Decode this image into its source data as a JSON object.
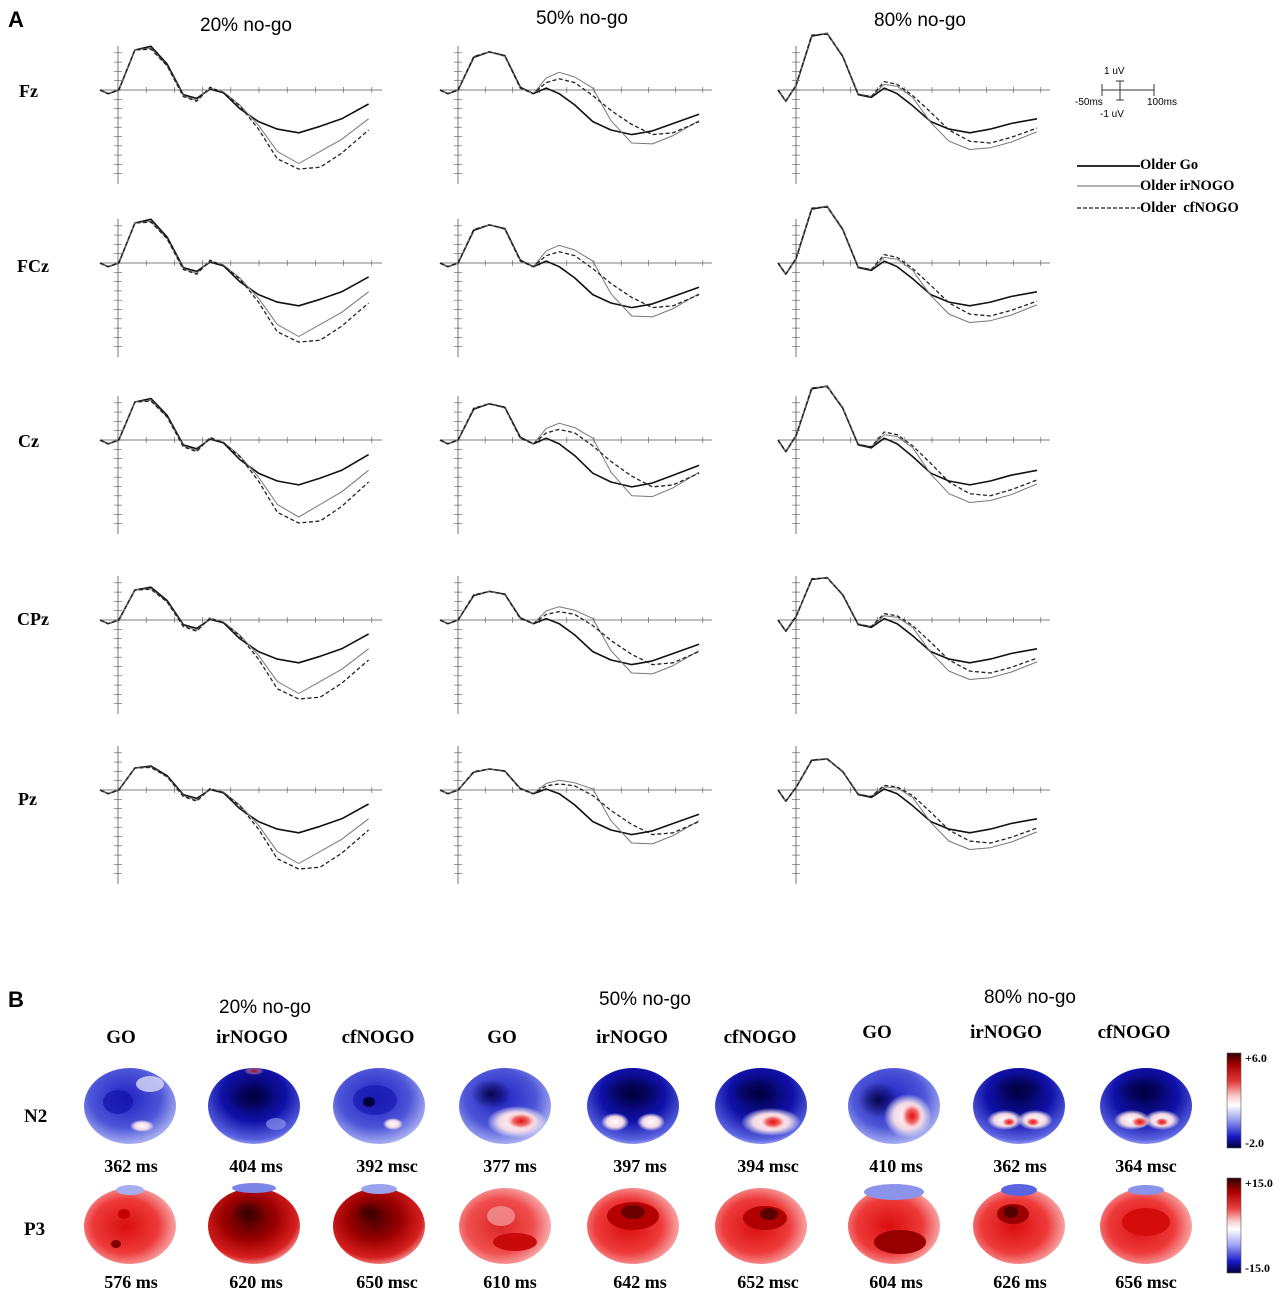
{
  "chart_data": {
    "type": "line",
    "panel_a": {
      "label": "A",
      "conditions": [
        "20% no-go",
        "50% no-go",
        "80% no-go"
      ],
      "electrodes": [
        "Fz",
        "FCz",
        "Cz",
        "CPz",
        "Pz"
      ],
      "x_unit": "ms",
      "y_unit": "uV",
      "xlim": [
        -50,
        1000
      ],
      "series": [
        {
          "name": "Older Go",
          "style": "solid-thick"
        },
        {
          "name": "Older irNOGO",
          "style": "solid-thin"
        },
        {
          "name": "Older  cfNOGO",
          "style": "dashed"
        }
      ],
      "scale_bar": {
        "up": "1 uV",
        "down": "-1 uV",
        "left": "-50ms",
        "right": "100ms"
      },
      "waveforms": {
        "20": {
          "Go": [
            [
              -50,
              0
            ],
            [
              -20,
              -0.4
            ],
            [
              20,
              0
            ],
            [
              80,
              4.3
            ],
            [
              140,
              4.7
            ],
            [
              200,
              2.8
            ],
            [
              260,
              -0.5
            ],
            [
              310,
              -0.9
            ],
            [
              360,
              0.1
            ],
            [
              410,
              -0.3
            ],
            [
              470,
              -2
            ],
            [
              540,
              -3.4
            ],
            [
              610,
              -4.2
            ],
            [
              690,
              -4.6
            ],
            [
              770,
              -3.9
            ],
            [
              850,
              -3.1
            ],
            [
              950,
              -1.5
            ]
          ],
          "irNOGO": [
            [
              -50,
              0
            ],
            [
              -20,
              -0.4
            ],
            [
              20,
              0
            ],
            [
              80,
              4.3
            ],
            [
              140,
              4.5
            ],
            [
              200,
              2.6
            ],
            [
              260,
              -0.6
            ],
            [
              310,
              -1.1
            ],
            [
              360,
              0.2
            ],
            [
              410,
              -0.2
            ],
            [
              470,
              -1.6
            ],
            [
              540,
              -3.8
            ],
            [
              610,
              -6.6
            ],
            [
              690,
              -7.9
            ],
            [
              770,
              -6.6
            ],
            [
              850,
              -5.3
            ],
            [
              950,
              -3.1
            ]
          ],
          "cfNOGO": [
            [
              -50,
              0
            ],
            [
              -20,
              -0.4
            ],
            [
              20,
              0
            ],
            [
              80,
              4.3
            ],
            [
              140,
              4.4
            ],
            [
              200,
              2.6
            ],
            [
              260,
              -0.7
            ],
            [
              310,
              -1.2
            ],
            [
              360,
              0.3
            ],
            [
              410,
              -0.3
            ],
            [
              470,
              -1.7
            ],
            [
              540,
              -4.2
            ],
            [
              610,
              -7.4
            ],
            [
              690,
              -8.5
            ],
            [
              770,
              -8.3
            ],
            [
              850,
              -6.8
            ],
            [
              950,
              -4.3
            ]
          ]
        },
        "50": {
          "Go": [
            [
              -50,
              0
            ],
            [
              -20,
              -0.4
            ],
            [
              20,
              0
            ],
            [
              80,
              3.5
            ],
            [
              140,
              4.1
            ],
            [
              200,
              3.7
            ],
            [
              260,
              0.3
            ],
            [
              310,
              -0.4
            ],
            [
              360,
              0.2
            ],
            [
              410,
              -0.4
            ],
            [
              470,
              -1.6
            ],
            [
              540,
              -3.4
            ],
            [
              610,
              -4.3
            ],
            [
              690,
              -4.8
            ],
            [
              770,
              -4.4
            ],
            [
              850,
              -3.6
            ],
            [
              950,
              -2.6
            ]
          ],
          "irNOGO": [
            [
              -50,
              0
            ],
            [
              -20,
              -0.4
            ],
            [
              20,
              0
            ],
            [
              80,
              3.6
            ],
            [
              140,
              4.1
            ],
            [
              200,
              3.6
            ],
            [
              260,
              0.2
            ],
            [
              310,
              -0.4
            ],
            [
              360,
              1.3
            ],
            [
              410,
              1.9
            ],
            [
              470,
              1.4
            ],
            [
              540,
              0.2
            ],
            [
              610,
              -3.3
            ],
            [
              690,
              -5.7
            ],
            [
              770,
              -5.8
            ],
            [
              850,
              -4.9
            ],
            [
              950,
              -3.3
            ]
          ],
          "cfNOGO": [
            [
              -50,
              0
            ],
            [
              -20,
              -0.4
            ],
            [
              20,
              0
            ],
            [
              80,
              3.6
            ],
            [
              140,
              4.1
            ],
            [
              200,
              3.7
            ],
            [
              260,
              0.2
            ],
            [
              310,
              -0.4
            ],
            [
              360,
              0.8
            ],
            [
              410,
              1.2
            ],
            [
              470,
              0.8
            ],
            [
              540,
              -0.6
            ],
            [
              610,
              -2.2
            ],
            [
              690,
              -3.7
            ],
            [
              770,
              -4.8
            ],
            [
              850,
              -4.6
            ],
            [
              950,
              -3.4
            ]
          ]
        },
        "80": {
          "Go": [
            [
              -50,
              0
            ],
            [
              -20,
              -1.2
            ],
            [
              20,
              0.5
            ],
            [
              80,
              5.8
            ],
            [
              140,
              6.1
            ],
            [
              200,
              3.6
            ],
            [
              260,
              -0.5
            ],
            [
              310,
              -0.8
            ],
            [
              360,
              0.2
            ],
            [
              410,
              -0.4
            ],
            [
              470,
              -1.7
            ],
            [
              540,
              -3.4
            ],
            [
              610,
              -4.2
            ],
            [
              690,
              -4.6
            ],
            [
              770,
              -4.2
            ],
            [
              850,
              -3.6
            ],
            [
              950,
              -3.1
            ]
          ],
          "irNOGO": [
            [
              -50,
              0
            ],
            [
              -20,
              -1.2
            ],
            [
              20,
              0.5
            ],
            [
              80,
              5.9
            ],
            [
              140,
              6.1
            ],
            [
              200,
              3.7
            ],
            [
              260,
              -0.4
            ],
            [
              310,
              -0.7
            ],
            [
              360,
              0.6
            ],
            [
              410,
              0.4
            ],
            [
              470,
              -0.8
            ],
            [
              540,
              -3.5
            ],
            [
              610,
              -5.5
            ],
            [
              690,
              -6.4
            ],
            [
              770,
              -6.2
            ],
            [
              850,
              -5.6
            ],
            [
              950,
              -4.5
            ]
          ],
          "cfNOGO": [
            [
              -50,
              0
            ],
            [
              -20,
              -1.2
            ],
            [
              20,
              0.5
            ],
            [
              80,
              5.9
            ],
            [
              140,
              6.0
            ],
            [
              200,
              3.6
            ],
            [
              260,
              -0.5
            ],
            [
              310,
              -0.7
            ],
            [
              360,
              0.9
            ],
            [
              410,
              0.6
            ],
            [
              470,
              -0.6
            ],
            [
              540,
              -2.4
            ],
            [
              610,
              -4.3
            ],
            [
              690,
              -5.5
            ],
            [
              770,
              -5.7
            ],
            [
              850,
              -5.1
            ],
            [
              950,
              -4.1
            ]
          ]
        }
      }
    },
    "panel_b": {
      "label": "B",
      "type": "heatmap",
      "condition_labels": [
        "20% no-go",
        "50% no-go",
        "80% no-go"
      ],
      "columns": [
        "GO",
        "irNOGO",
        "cfNOGO",
        "GO",
        "irNOGO",
        "cfNOGO",
        "GO",
        "irNOGO",
        "cfNOGO"
      ],
      "rows": [
        {
          "component": "N2",
          "times": [
            "362 ms",
            "404 ms",
            "392 msc",
            "377 ms",
            "397 ms",
            "394 msc",
            "410 ms",
            "362 ms",
            "364 msc"
          ],
          "colorbar": {
            "max": "+6.0",
            "min": "-2.0"
          }
        },
        {
          "component": "P3",
          "times": [
            "576 ms",
            "620 ms",
            "650 msc",
            "610 ms",
            "642 ms",
            "652 msc",
            "604 ms",
            "626 ms",
            "656 msc"
          ],
          "colorbar": {
            "max": "+15.0",
            "min": "-15.0"
          }
        }
      ]
    }
  }
}
